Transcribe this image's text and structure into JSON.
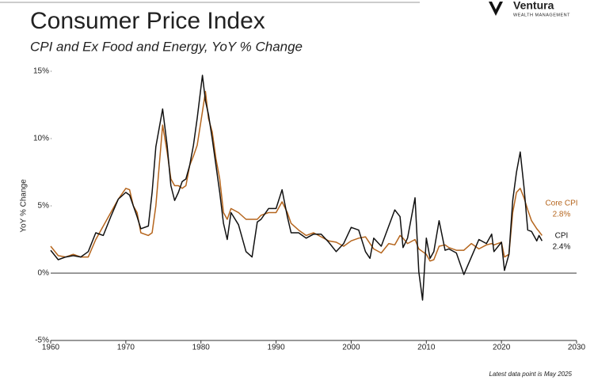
{
  "brand": {
    "name": "Ventura",
    "tagline": "WEALTH MANAGEMENT"
  },
  "chart_data": {
    "type": "line",
    "title": "Consumer Price Index",
    "subtitle": "CPI and Ex Food and Energy, YoY % Change",
    "y_label": "YoY % Change",
    "note": "Latest data point is May 2025",
    "x": [
      1960,
      1961,
      1962,
      1963,
      1964,
      1965,
      1966,
      1967,
      1968,
      1969,
      1970,
      1970.5,
      1971,
      1971.5,
      1972,
      1973,
      1973.5,
      1974,
      1974.9,
      1975.5,
      1976,
      1976.5,
      1977,
      1977.5,
      1978,
      1978.5,
      1979,
      1979.5,
      1980.2,
      1980.6,
      1981,
      1981.5,
      1982,
      1982.5,
      1983,
      1983.5,
      1984,
      1985,
      1986,
      1986.8,
      1987.5,
      1988,
      1989,
      1990,
      1990.8,
      1991.5,
      1992,
      1993,
      1994,
      1995,
      1996,
      1997,
      1998,
      1999,
      2000,
      2001,
      2001.9,
      2002.5,
      2003,
      2004,
      2005,
      2005.8,
      2006.5,
      2006.9,
      2007.5,
      2008.5,
      2009.0,
      2009.5,
      2010,
      2010.5,
      2011,
      2011.7,
      2012.5,
      2013,
      2014,
      2015,
      2016,
      2017,
      2018,
      2018.7,
      2019,
      2020,
      2020.4,
      2021,
      2021.5,
      2022,
      2022.5,
      2023,
      2023.5,
      2024,
      2024.7,
      2025,
      2025.4
    ],
    "series": [
      {
        "name": "Core CPI",
        "color": "#b5651d",
        "values": [
          2.0,
          1.3,
          1.2,
          1.4,
          1.2,
          1.2,
          2.5,
          3.5,
          4.5,
          5.5,
          6.3,
          6.2,
          5.0,
          4.5,
          3.0,
          2.8,
          3.0,
          5.0,
          11.0,
          9.0,
          7.0,
          6.5,
          6.5,
          6.3,
          6.5,
          8.0,
          8.7,
          9.5,
          12.0,
          13.5,
          11.5,
          10.5,
          8.5,
          7.0,
          4.5,
          4.0,
          4.8,
          4.5,
          4.0,
          4.0,
          4.0,
          4.3,
          4.5,
          4.5,
          5.3,
          4.5,
          3.7,
          3.2,
          2.8,
          3.0,
          2.7,
          2.4,
          2.3,
          2.0,
          2.4,
          2.6,
          2.7,
          2.2,
          1.8,
          1.5,
          2.2,
          2.1,
          2.8,
          2.6,
          2.2,
          2.5,
          1.8,
          1.6,
          1.4,
          0.9,
          1.0,
          2.0,
          2.1,
          1.9,
          1.7,
          1.7,
          2.2,
          1.8,
          2.1,
          2.2,
          2.1,
          2.3,
          1.2,
          1.4,
          4.5,
          6.0,
          6.3,
          5.6,
          4.7,
          3.9,
          3.3,
          3.1,
          2.8
        ]
      },
      {
        "name": "CPI",
        "color": "#111111",
        "values": [
          1.7,
          1.0,
          1.2,
          1.3,
          1.2,
          1.6,
          3.0,
          2.8,
          4.2,
          5.5,
          6.0,
          5.8,
          5.0,
          4.2,
          3.3,
          3.5,
          6.0,
          9.4,
          12.2,
          9.5,
          6.5,
          5.4,
          6.0,
          6.8,
          7.0,
          8.0,
          9.5,
          11.5,
          14.7,
          12.8,
          11.8,
          10.0,
          8.0,
          6.0,
          3.7,
          2.5,
          4.5,
          3.6,
          1.6,
          1.2,
          3.8,
          4.0,
          4.8,
          4.8,
          6.2,
          4.2,
          3.0,
          3.0,
          2.6,
          2.9,
          2.9,
          2.3,
          1.6,
          2.2,
          3.4,
          3.2,
          1.6,
          1.1,
          2.6,
          2.0,
          3.5,
          4.7,
          4.2,
          1.9,
          2.6,
          5.6,
          0.1,
          -2.0,
          2.6,
          1.1,
          1.6,
          3.9,
          1.7,
          1.8,
          1.5,
          -0.1,
          1.2,
          2.5,
          2.2,
          2.9,
          1.6,
          2.3,
          0.2,
          1.4,
          5.4,
          7.5,
          9.0,
          6.4,
          3.2,
          3.1,
          2.4,
          2.8,
          2.4
        ]
      }
    ],
    "annotations": [
      {
        "text": "2.8%"
      },
      {
        "text": "2.4%"
      }
    ],
    "xlim": [
      1960,
      2030
    ],
    "xticks": [
      1960,
      1970,
      1980,
      1990,
      2000,
      2010,
      2020,
      2030
    ],
    "ylim": [
      -5,
      15
    ],
    "yticks": [
      {
        "value": -5,
        "label": "-5%"
      },
      {
        "value": 0,
        "label": "0%"
      },
      {
        "value": 5,
        "label": "5%"
      },
      {
        "value": 10,
        "label": "10%"
      },
      {
        "value": 15,
        "label": "15%"
      }
    ]
  }
}
